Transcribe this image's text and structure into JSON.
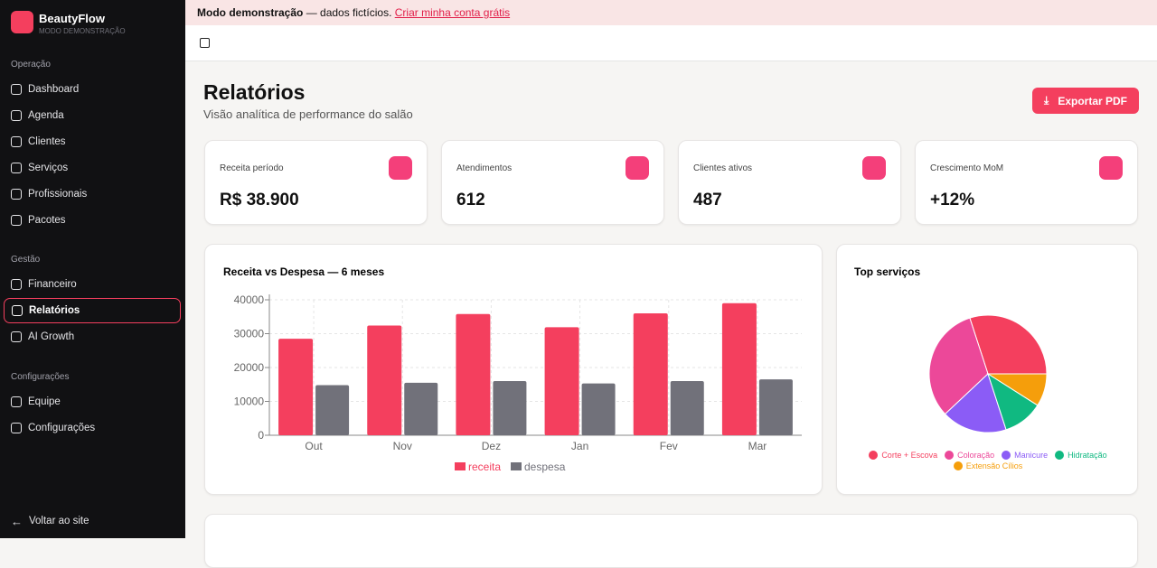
{
  "sidebar": {
    "brand": "BeautyFlow",
    "brand_subtitle": "MODO DEMONSTRAÇÃO",
    "groups": [
      {
        "label": "Operação",
        "items": [
          "Dashboard",
          "Agenda",
          "Clientes",
          "Serviços",
          "Profissionais",
          "Pacotes"
        ]
      },
      {
        "label": "Gestão",
        "items": [
          "Financeiro",
          "Relatórios",
          "AI Growth"
        ]
      },
      {
        "label": "Configurações",
        "items": [
          "Equipe",
          "Configurações"
        ]
      }
    ],
    "active": "Relatórios",
    "footer": "Voltar ao site"
  },
  "banner": {
    "strong": "Modo demonstração",
    "text": " — dados fictícios. ",
    "link": "Criar minha conta grátis"
  },
  "header": {
    "title": "Relatórios",
    "subtitle": "Visão analítica de performance do salão",
    "button": "Exportar PDF"
  },
  "kpis": [
    {
      "label": "Receita período",
      "value": "R$ 38.900"
    },
    {
      "label": "Atendimentos",
      "value": "612"
    },
    {
      "label": "Clientes ativos",
      "value": "487"
    },
    {
      "label": "Crescimento MoM",
      "value": "+12%"
    }
  ],
  "chart_data": [
    {
      "type": "bar",
      "title": "Receita vs Despesa — 6 meses",
      "categories": [
        "Out",
        "Nov",
        "Dez",
        "Jan",
        "Fev",
        "Mar"
      ],
      "series": [
        {
          "name": "receita",
          "color": "#f43f5e",
          "values": [
            28500,
            32400,
            35800,
            31900,
            36000,
            39000
          ]
        },
        {
          "name": "despesa",
          "color": "#71717a",
          "values": [
            14800,
            15500,
            16000,
            15300,
            16000,
            16500
          ]
        }
      ],
      "ylim": [
        0,
        40000
      ],
      "yticks": [
        0,
        10000,
        20000,
        30000,
        40000
      ],
      "grid": true
    },
    {
      "type": "pie",
      "title": "Top serviços",
      "categories": [
        "Corte + Escova",
        "Coloração",
        "Manicure",
        "Hidratação",
        "Extensão Cílios"
      ],
      "values": [
        30,
        32,
        18,
        11,
        9
      ],
      "colors": [
        "#f43f5e",
        "#ec4899",
        "#8b5cf6",
        "#10b981",
        "#f59e0b"
      ]
    }
  ]
}
